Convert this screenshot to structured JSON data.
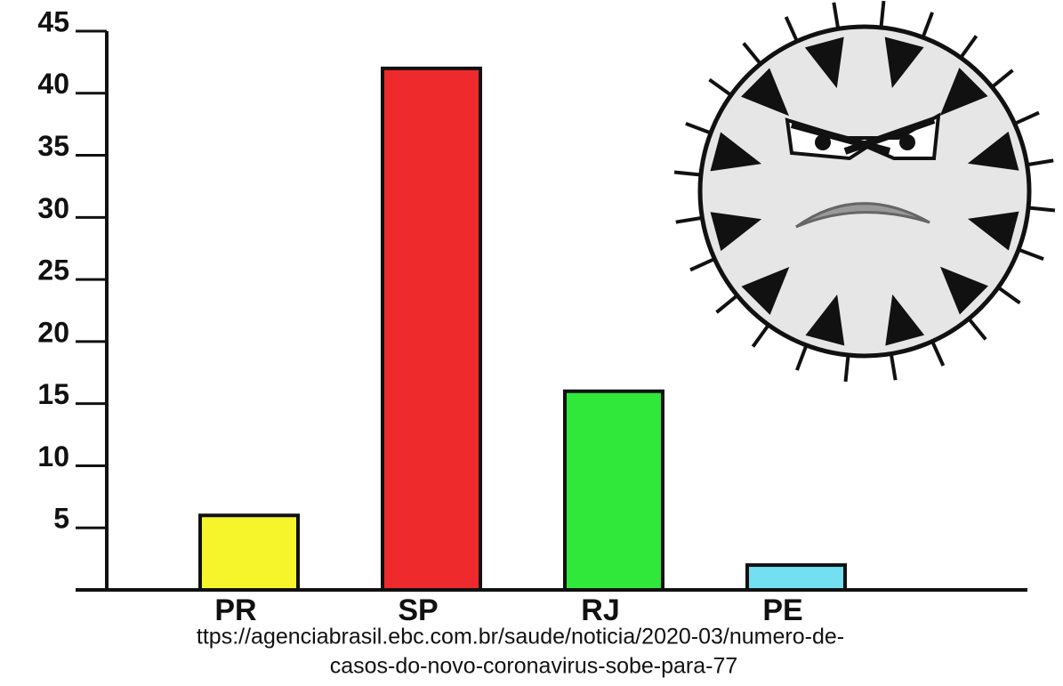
{
  "chart_data": {
    "type": "bar",
    "categories": [
      "PR",
      "SP",
      "RJ",
      "PE"
    ],
    "values": [
      6,
      42,
      16,
      2
    ],
    "colors": [
      "#f6f52c",
      "#ee2a2c",
      "#2fe83a",
      "#74dff0"
    ],
    "ylim": [
      0,
      45
    ],
    "yticks": [
      5,
      10,
      15,
      20,
      25,
      30,
      35,
      40,
      45
    ],
    "source": [
      "ttps://agenciabrasil.ebc.com.br/saude/noticia/2020-03/numero-de-",
      "casos-do-novo-coronavirus-sobe-para-77"
    ]
  }
}
